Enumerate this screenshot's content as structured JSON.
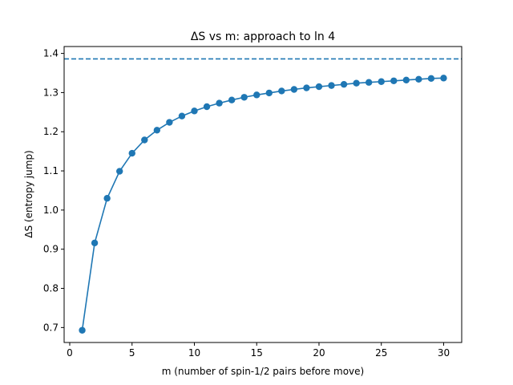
{
  "chart_data": {
    "type": "line",
    "title": "ΔS vs m: approach to ln 4",
    "xlabel": "m  (number of spin-1/2 pairs before move)",
    "ylabel": "ΔS  (entropy jump)",
    "xlim": [
      -0.45,
      31.45
    ],
    "ylim": [
      0.6618,
      1.4176
    ],
    "xticks": [
      0,
      5,
      10,
      15,
      20,
      25,
      30
    ],
    "yticks": [
      0.7,
      0.8,
      0.9,
      1.0,
      1.1,
      1.2,
      1.3,
      1.4
    ],
    "xtick_labels": [
      "0",
      "5",
      "10",
      "15",
      "20",
      "25",
      "30"
    ],
    "ytick_labels": [
      "0.7",
      "0.8",
      "0.9",
      "1.0",
      "1.1",
      "1.2",
      "1.3",
      "1.4"
    ],
    "grid": false,
    "series": [
      {
        "color": "#1f77b4",
        "marker": "circle",
        "x": [
          1,
          2,
          3,
          4,
          5,
          6,
          7,
          8,
          9,
          10,
          11,
          12,
          13,
          14,
          15,
          16,
          17,
          18,
          19,
          20,
          21,
          22,
          23,
          24,
          25,
          26,
          27,
          28,
          29,
          30
        ],
        "y": [
          0.693,
          0.916,
          1.03,
          1.099,
          1.145,
          1.179,
          1.204,
          1.224,
          1.24,
          1.253,
          1.264,
          1.273,
          1.281,
          1.288,
          1.294,
          1.299,
          1.304,
          1.308,
          1.312,
          1.315,
          1.318,
          1.321,
          1.324,
          1.326,
          1.328,
          1.33,
          1.332,
          1.334,
          1.336,
          1.337
        ]
      }
    ],
    "reference_lines": [
      {
        "orientation": "horizontal",
        "y": 1.386,
        "style": "dashed",
        "color": "#1f77b4"
      }
    ]
  }
}
